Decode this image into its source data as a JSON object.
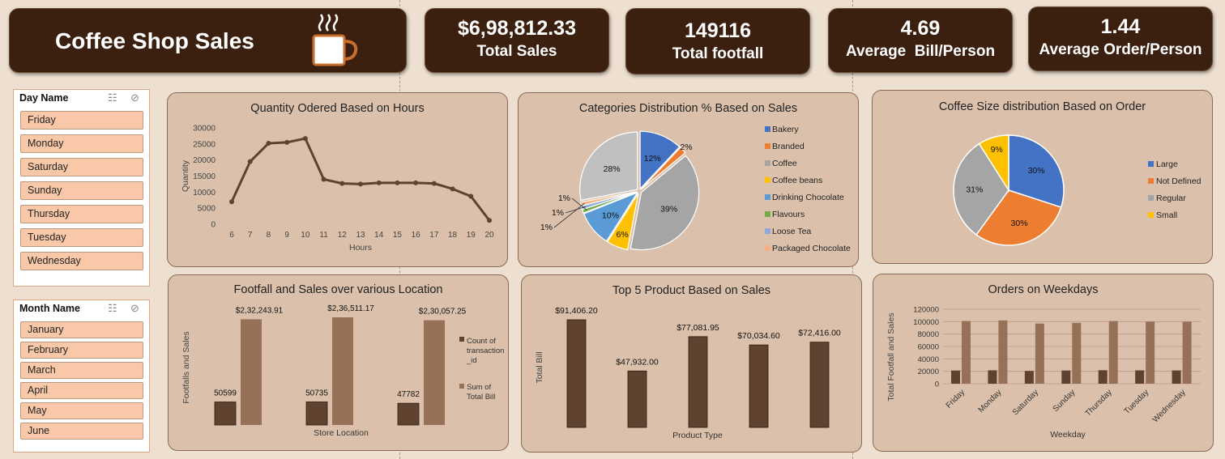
{
  "header": {
    "title": "Coffee Shop Sales",
    "icon": "coffee-cup-icon"
  },
  "kpis": [
    {
      "value": "$6,98,812.33",
      "label": "Total Sales"
    },
    {
      "value": "149116",
      "label": "Total footfall"
    },
    {
      "value": "4.69",
      "label": "Average  Bill/Person"
    },
    {
      "value": "1.44",
      "label": "Average Order/Person"
    }
  ],
  "slicers": {
    "day": {
      "title": "Day Name",
      "items": [
        "Friday",
        "Monday",
        "Saturday",
        "Sunday",
        "Thursday",
        "Tuesday",
        "Wednesday"
      ]
    },
    "month": {
      "title": "Month Name",
      "items": [
        "January",
        "February",
        "March",
        "April",
        "May",
        "June"
      ]
    }
  },
  "colors": {
    "dark_brown": "#3b1f0f",
    "panel": "#dbc1ab",
    "bar_dark": "#5f4330",
    "bar_light": "#977058",
    "slicer_item": "#f8c8a8"
  },
  "chart_data": [
    {
      "type": "line",
      "title": "Quantity Odered Based on Hours",
      "xlabel": "Hours",
      "ylabel": "Quantity",
      "x": [
        6,
        7,
        8,
        9,
        10,
        11,
        12,
        13,
        14,
        15,
        16,
        17,
        18,
        19,
        20
      ],
      "values": [
        7000,
        19500,
        25200,
        25500,
        26700,
        14000,
        12700,
        12500,
        12900,
        12900,
        12900,
        12700,
        11000,
        8700,
        1200
      ],
      "ylim": [
        0,
        30000
      ],
      "yticks": [
        "30000",
        "25000",
        "20000",
        "15000",
        "10000",
        "5000",
        "0"
      ]
    },
    {
      "type": "pie",
      "title": "Categories Distribution % Based on Sales",
      "categories": [
        "Bakery",
        "Branded",
        "Coffee",
        "Coffee beans",
        "Drinking Chocolate",
        "Flavours",
        "Loose Tea",
        "Packaged Chocolate"
      ],
      "values": [
        12,
        2,
        39,
        6,
        10,
        1,
        1,
        1
      ],
      "labels": [
        "12%",
        "2%",
        "39%",
        "6%",
        "10%",
        "1%",
        "1%",
        "1%"
      ],
      "colors": [
        "#4472c4",
        "#ed7d31",
        "#a5a5a5",
        "#ffc000",
        "#5b9bd5",
        "#70ad47",
        "#8ea9db",
        "#f4b183"
      ],
      "extra": {
        "value": 28,
        "label": "28%",
        "color": "#c0c0c0"
      }
    },
    {
      "type": "pie",
      "title": "Coffee Size distribution Based on Order",
      "categories": [
        "Large",
        "Not Defined",
        "Regular",
        "Small"
      ],
      "values": [
        30,
        30,
        31,
        9
      ],
      "labels": [
        "30%",
        "30%",
        "31%",
        "9%"
      ],
      "colors": [
        "#4472c4",
        "#ed7d31",
        "#a5a5a5",
        "#ffc000"
      ]
    },
    {
      "type": "bar",
      "title": "Footfall and Sales over various Location",
      "xlabel": "Store Location",
      "ylabel": "Footfalls and Sales",
      "series": [
        {
          "name": "Count of transaction _id",
          "values": [
            50599,
            50735,
            47782
          ],
          "labels": [
            "50599",
            "50735",
            "47782"
          ]
        },
        {
          "name": "Sum of Total Bill",
          "values": [
            232243.91,
            236511.17,
            230057.25
          ],
          "labels": [
            "$2,32,243.91",
            "$2,36,511.17",
            "$2,30,057.25"
          ]
        }
      ]
    },
    {
      "type": "bar",
      "title": "Top 5 Product Based on Sales",
      "xlabel": "Product Type",
      "ylabel": "Total Bill",
      "values": [
        91406.2,
        47932.0,
        77081.95,
        70034.6,
        72416.0
      ],
      "labels": [
        "$91,406.20",
        "$47,932.00",
        "$77,081.95",
        "$70,034.60",
        "$72,416.00"
      ]
    },
    {
      "type": "bar",
      "title": "Orders on Weekdays",
      "xlabel": "Weekday",
      "ylabel": "Total  Footfall and Sales",
      "categories": [
        "Friday",
        "Monday",
        "Saturday",
        "Sunday",
        "Thursday",
        "Tuesday",
        "Wednesday"
      ],
      "series": [
        {
          "values": [
            21300,
            21600,
            20600,
            21300,
            21700,
            21500,
            21400
          ]
        },
        {
          "values": [
            101000,
            102000,
            97000,
            98000,
            101000,
            100000,
            100000
          ]
        }
      ],
      "ylim": [
        0,
        120000
      ],
      "yticks": [
        "120000",
        "100000",
        "80000",
        "60000",
        "40000",
        "20000",
        "0"
      ]
    }
  ]
}
